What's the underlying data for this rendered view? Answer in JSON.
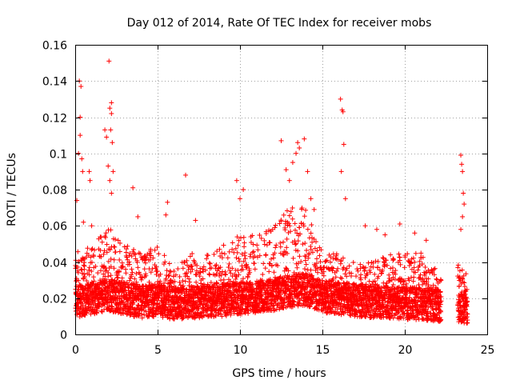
{
  "chart_data": {
    "type": "scatter",
    "title": "Day 012 of 2014, Rate Of TEC Index for receiver mobs",
    "xlabel": "GPS time / hours",
    "ylabel": "ROTI / TECUs",
    "xlim": [
      0,
      25
    ],
    "ylim": [
      0,
      0.16
    ],
    "grid": true,
    "marker": "+",
    "color": "#ff0000",
    "x_ticks": [
      {
        "value": 0,
        "label": "0"
      },
      {
        "value": 5,
        "label": "5"
      },
      {
        "value": 10,
        "label": "10"
      },
      {
        "value": 15,
        "label": "15"
      },
      {
        "value": 20,
        "label": "20"
      },
      {
        "value": 25,
        "label": "25"
      }
    ],
    "y_ticks": [
      {
        "value": 0,
        "label": "0"
      },
      {
        "value": 0.02,
        "label": "0.02"
      },
      {
        "value": 0.04,
        "label": "0.04"
      },
      {
        "value": 0.06,
        "label": "0.06"
      },
      {
        "value": 0.08,
        "label": "0.08"
      },
      {
        "value": 0.1,
        "label": "0.1"
      },
      {
        "value": 0.12,
        "label": "0.12"
      },
      {
        "value": 0.14,
        "label": "0.14"
      },
      {
        "value": 0.16,
        "label": "0.16"
      }
    ],
    "series": [
      {
        "name": "ROTI",
        "envelope": {
          "description": "dense band of ROTI samples; per-hour median and typical upper extent",
          "hours": [
            0,
            1,
            2,
            3,
            4,
            5,
            6,
            7,
            8,
            9,
            10,
            11,
            12,
            13,
            14,
            15,
            16,
            17,
            18,
            19,
            20,
            21,
            22,
            23,
            23.8
          ],
          "median": [
            0.018,
            0.02,
            0.022,
            0.02,
            0.018,
            0.019,
            0.017,
            0.018,
            0.018,
            0.019,
            0.02,
            0.021,
            0.022,
            0.024,
            0.025,
            0.021,
            0.02,
            0.019,
            0.018,
            0.018,
            0.017,
            0.017,
            0.016,
            0.016,
            0.015
          ],
          "upper": [
            0.045,
            0.05,
            0.06,
            0.05,
            0.045,
            0.05,
            0.035,
            0.045,
            0.045,
            0.05,
            0.055,
            0.055,
            0.06,
            0.07,
            0.07,
            0.045,
            0.045,
            0.04,
            0.04,
            0.045,
            0.045,
            0.045,
            0.035,
            0.04,
            0.035
          ]
        },
        "x": [
          0.1,
          0.2,
          0.25,
          0.3,
          0.35,
          0.3,
          0.4,
          0.45,
          0.5,
          0.9,
          0.85,
          1.0,
          1.8,
          1.9,
          2.05,
          2.1,
          2.2,
          2.2,
          2.15,
          2.25,
          2.3,
          2.1,
          2.2,
          2.0,
          3.5,
          3.8,
          5.5,
          5.6,
          6.7,
          7.3,
          9.8,
          10.0,
          10.2,
          12.5,
          12.8,
          13.0,
          13.2,
          13.4,
          13.5,
          13.6,
          13.9,
          14.1,
          14.3,
          14.5,
          16.1,
          16.2,
          16.25,
          16.3,
          16.15,
          16.4,
          17.6,
          18.3,
          18.8,
          19.7,
          20.6,
          21.3,
          23.4,
          23.45,
          23.5,
          23.55,
          23.6,
          23.5,
          23.4
        ],
        "y": [
          0.074,
          0.1,
          0.14,
          0.12,
          0.137,
          0.11,
          0.097,
          0.09,
          0.062,
          0.085,
          0.09,
          0.06,
          0.113,
          0.109,
          0.151,
          0.125,
          0.128,
          0.122,
          0.113,
          0.106,
          0.09,
          0.085,
          0.078,
          0.093,
          0.081,
          0.065,
          0.066,
          0.073,
          0.088,
          0.063,
          0.085,
          0.075,
          0.08,
          0.107,
          0.091,
          0.085,
          0.095,
          0.1,
          0.106,
          0.103,
          0.108,
          0.09,
          0.075,
          0.069,
          0.13,
          0.124,
          0.123,
          0.105,
          0.09,
          0.075,
          0.06,
          0.058,
          0.055,
          0.061,
          0.056,
          0.052,
          0.099,
          0.094,
          0.09,
          0.078,
          0.072,
          0.065,
          0.058
        ]
      }
    ]
  }
}
